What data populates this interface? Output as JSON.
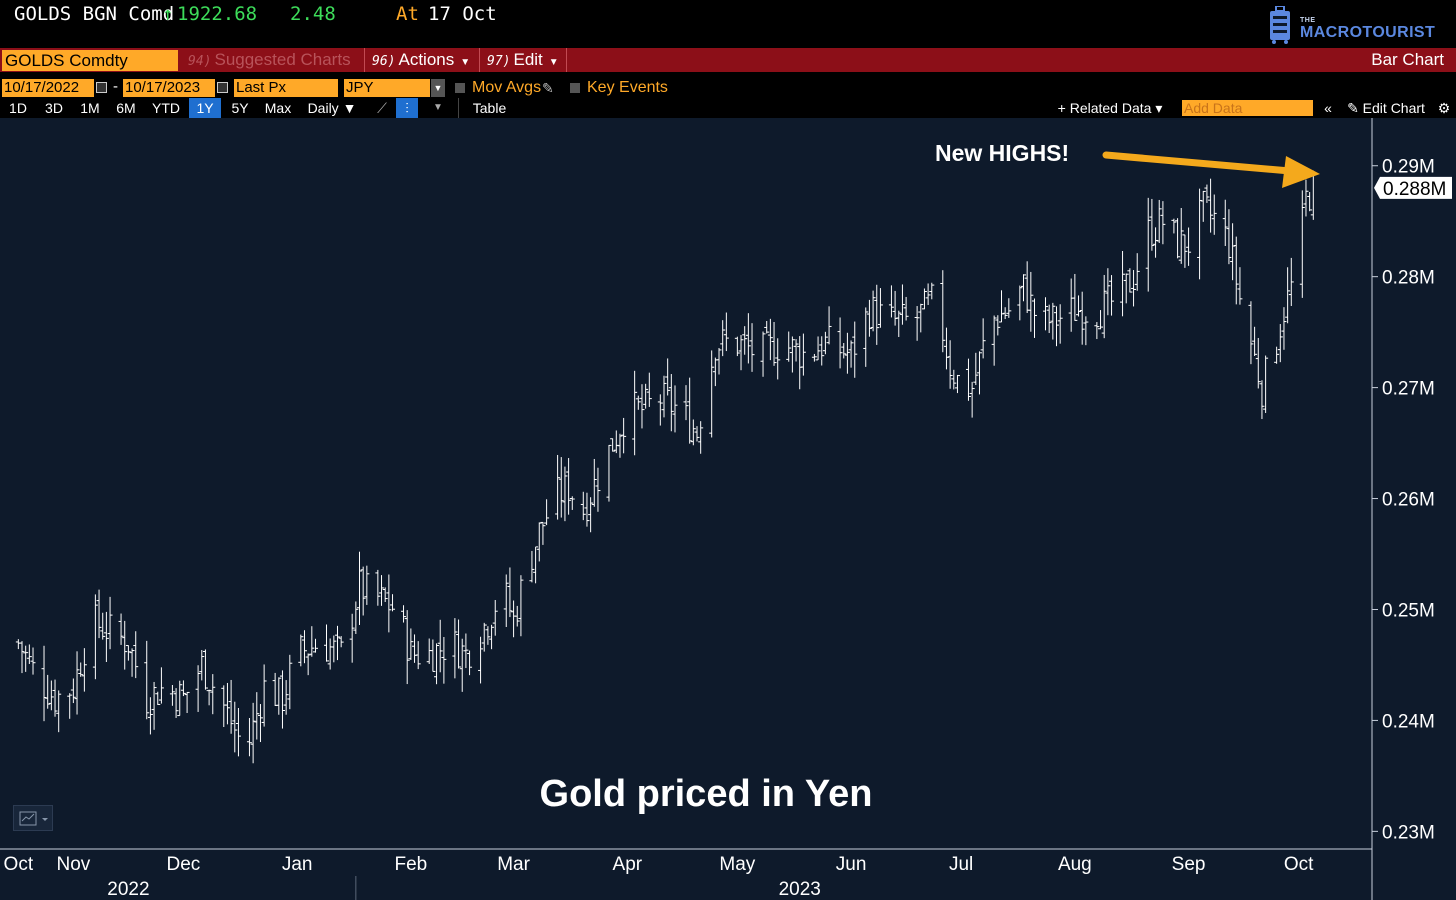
{
  "ticker": {
    "name": "GOLDS BGN Comd",
    "arrow": "↑",
    "price": "1922.68",
    "change": "2.48",
    "at_label": "At",
    "at_date": "17 Oct"
  },
  "logo": {
    "the": "THE",
    "text": "MACROTOURIST"
  },
  "menu": {
    "security": "GOLDS Comdty",
    "suggested_num": "94)",
    "suggested_label": "Suggested Charts",
    "actions_num": "96)",
    "actions_label": "Actions",
    "edit_num": "97)",
    "edit_label": "Edit",
    "chart_type": "Bar Chart"
  },
  "controls": {
    "start_date": "10/17/2022",
    "dash": "-",
    "end_date": "10/17/2023",
    "price_field": "Last Px",
    "currency": "JPY",
    "mov_avgs": "Mov Avgs",
    "key_events": "Key Events"
  },
  "toolbar": {
    "ranges": [
      "1D",
      "3D",
      "1M",
      "6M",
      "YTD",
      "1Y",
      "5Y",
      "Max"
    ],
    "frequency": "Daily ▼",
    "table": "Table",
    "related_data": "+ Related Data ▾",
    "add_data_placeholder": "Add Data",
    "collapse": "«",
    "edit_chart": "✎ Edit Chart",
    "gear": "⚙"
  },
  "colors": {
    "background": "#0e1a2b",
    "bars": "#ffffff",
    "accent": "#ffa928",
    "menu_red": "#8c0f18",
    "up_green": "#3ddc5a",
    "arrow": "#f4a91c"
  },
  "chart_data": {
    "type": "bar",
    "title": "Gold priced in Yen",
    "annotation": "New HIGHS!",
    "last_value_label": "0.288M",
    "ylim": [
      0.2285,
      0.2925
    ],
    "y_ticks": [
      {
        "value": 0.23,
        "label": "0.23M"
      },
      {
        "value": 0.24,
        "label": "0.24M"
      },
      {
        "value": 0.25,
        "label": "0.25M"
      },
      {
        "value": 0.26,
        "label": "0.26M"
      },
      {
        "value": 0.27,
        "label": "0.27M"
      },
      {
        "value": 0.28,
        "label": "0.28M"
      },
      {
        "value": 0.29,
        "label": "0.29M"
      }
    ],
    "x_months": [
      {
        "label": "Oct",
        "day": 0
      },
      {
        "label": "Nov",
        "day": 15
      },
      {
        "label": "Dec",
        "day": 45
      },
      {
        "label": "Jan",
        "day": 76
      },
      {
        "label": "Feb",
        "day": 107
      },
      {
        "label": "Mar",
        "day": 135
      },
      {
        "label": "Apr",
        "day": 166
      },
      {
        "label": "May",
        "day": 196
      },
      {
        "label": "Jun",
        "day": 227
      },
      {
        "label": "Jul",
        "day": 257
      },
      {
        "label": "Aug",
        "day": 288
      },
      {
        "label": "Sep",
        "day": 319
      },
      {
        "label": "Oct",
        "day": 349
      }
    ],
    "x_years": [
      {
        "label": "2022",
        "day": 30
      },
      {
        "label": "2023",
        "day": 213
      }
    ],
    "x_range": [
      -5,
      369
    ],
    "series_points": [
      {
        "day": 0,
        "value": 0.247
      },
      {
        "day": 5,
        "value": 0.244
      },
      {
        "day": 10,
        "value": 0.242
      },
      {
        "day": 15,
        "value": 0.243
      },
      {
        "day": 20,
        "value": 0.249
      },
      {
        "day": 25,
        "value": 0.248
      },
      {
        "day": 30,
        "value": 0.247
      },
      {
        "day": 35,
        "value": 0.242
      },
      {
        "day": 40,
        "value": 0.243
      },
      {
        "day": 45,
        "value": 0.242
      },
      {
        "day": 50,
        "value": 0.245
      },
      {
        "day": 55,
        "value": 0.242
      },
      {
        "day": 62,
        "value": 0.237
      },
      {
        "day": 67,
        "value": 0.243
      },
      {
        "day": 72,
        "value": 0.242
      },
      {
        "day": 76,
        "value": 0.246
      },
      {
        "day": 82,
        "value": 0.247
      },
      {
        "day": 88,
        "value": 0.246
      },
      {
        "day": 93,
        "value": 0.252
      },
      {
        "day": 98,
        "value": 0.251
      },
      {
        "day": 103,
        "value": 0.25
      },
      {
        "day": 107,
        "value": 0.246
      },
      {
        "day": 112,
        "value": 0.246
      },
      {
        "day": 118,
        "value": 0.247
      },
      {
        "day": 122,
        "value": 0.246
      },
      {
        "day": 128,
        "value": 0.249
      },
      {
        "day": 132,
        "value": 0.252
      },
      {
        "day": 135,
        "value": 0.249
      },
      {
        "day": 138,
        "value": 0.253
      },
      {
        "day": 142,
        "value": 0.257
      },
      {
        "day": 146,
        "value": 0.26
      },
      {
        "day": 150,
        "value": 0.261
      },
      {
        "day": 154,
        "value": 0.259
      },
      {
        "day": 158,
        "value": 0.262
      },
      {
        "day": 162,
        "value": 0.265
      },
      {
        "day": 166,
        "value": 0.268
      },
      {
        "day": 170,
        "value": 0.268
      },
      {
        "day": 175,
        "value": 0.269
      },
      {
        "day": 180,
        "value": 0.268
      },
      {
        "day": 185,
        "value": 0.266
      },
      {
        "day": 190,
        "value": 0.274
      },
      {
        "day": 196,
        "value": 0.274
      },
      {
        "day": 202,
        "value": 0.273
      },
      {
        "day": 208,
        "value": 0.274
      },
      {
        "day": 214,
        "value": 0.273
      },
      {
        "day": 220,
        "value": 0.274
      },
      {
        "day": 227,
        "value": 0.273
      },
      {
        "day": 232,
        "value": 0.277
      },
      {
        "day": 238,
        "value": 0.276
      },
      {
        "day": 244,
        "value": 0.276
      },
      {
        "day": 250,
        "value": 0.278
      },
      {
        "day": 254,
        "value": 0.272
      },
      {
        "day": 257,
        "value": 0.27
      },
      {
        "day": 260,
        "value": 0.27
      },
      {
        "day": 265,
        "value": 0.276
      },
      {
        "day": 270,
        "value": 0.277
      },
      {
        "day": 274,
        "value": 0.279
      },
      {
        "day": 278,
        "value": 0.276
      },
      {
        "day": 282,
        "value": 0.276
      },
      {
        "day": 288,
        "value": 0.277
      },
      {
        "day": 294,
        "value": 0.277
      },
      {
        "day": 300,
        "value": 0.278
      },
      {
        "day": 304,
        "value": 0.28
      },
      {
        "day": 308,
        "value": 0.284
      },
      {
        "day": 312,
        "value": 0.285
      },
      {
        "day": 316,
        "value": 0.283
      },
      {
        "day": 319,
        "value": 0.283
      },
      {
        "day": 323,
        "value": 0.286
      },
      {
        "day": 327,
        "value": 0.285
      },
      {
        "day": 330,
        "value": 0.283
      },
      {
        "day": 333,
        "value": 0.278
      },
      {
        "day": 336,
        "value": 0.274
      },
      {
        "day": 339,
        "value": 0.27
      },
      {
        "day": 342,
        "value": 0.273
      },
      {
        "day": 345,
        "value": 0.277
      },
      {
        "day": 348,
        "value": 0.28
      },
      {
        "day": 351,
        "value": 0.287
      },
      {
        "day": 353,
        "value": 0.288
      }
    ]
  }
}
